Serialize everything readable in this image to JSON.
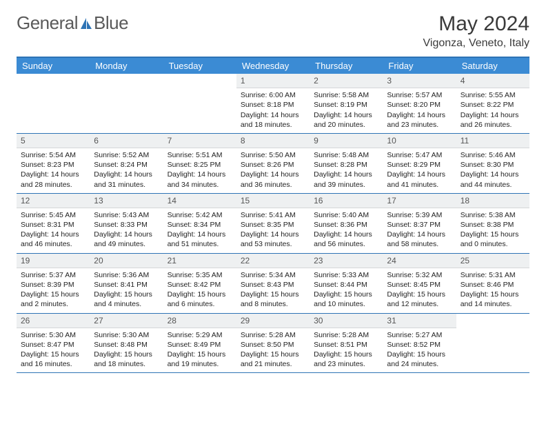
{
  "logo": {
    "text1": "General",
    "text2": "Blue"
  },
  "title": "May 2024",
  "location": "Vigonza, Veneto, Italy",
  "header_bg": "#3b8bd4",
  "rule_color": "#2d73b5",
  "weekdays": [
    "Sunday",
    "Monday",
    "Tuesday",
    "Wednesday",
    "Thursday",
    "Friday",
    "Saturday"
  ],
  "weeks": [
    [
      {
        "n": "",
        "sr": "",
        "ss": "",
        "dl": ""
      },
      {
        "n": "",
        "sr": "",
        "ss": "",
        "dl": ""
      },
      {
        "n": "",
        "sr": "",
        "ss": "",
        "dl": ""
      },
      {
        "n": "1",
        "sr": "Sunrise: 6:00 AM",
        "ss": "Sunset: 8:18 PM",
        "dl": "Daylight: 14 hours and 18 minutes."
      },
      {
        "n": "2",
        "sr": "Sunrise: 5:58 AM",
        "ss": "Sunset: 8:19 PM",
        "dl": "Daylight: 14 hours and 20 minutes."
      },
      {
        "n": "3",
        "sr": "Sunrise: 5:57 AM",
        "ss": "Sunset: 8:20 PM",
        "dl": "Daylight: 14 hours and 23 minutes."
      },
      {
        "n": "4",
        "sr": "Sunrise: 5:55 AM",
        "ss": "Sunset: 8:22 PM",
        "dl": "Daylight: 14 hours and 26 minutes."
      }
    ],
    [
      {
        "n": "5",
        "sr": "Sunrise: 5:54 AM",
        "ss": "Sunset: 8:23 PM",
        "dl": "Daylight: 14 hours and 28 minutes."
      },
      {
        "n": "6",
        "sr": "Sunrise: 5:52 AM",
        "ss": "Sunset: 8:24 PM",
        "dl": "Daylight: 14 hours and 31 minutes."
      },
      {
        "n": "7",
        "sr": "Sunrise: 5:51 AM",
        "ss": "Sunset: 8:25 PM",
        "dl": "Daylight: 14 hours and 34 minutes."
      },
      {
        "n": "8",
        "sr": "Sunrise: 5:50 AM",
        "ss": "Sunset: 8:26 PM",
        "dl": "Daylight: 14 hours and 36 minutes."
      },
      {
        "n": "9",
        "sr": "Sunrise: 5:48 AM",
        "ss": "Sunset: 8:28 PM",
        "dl": "Daylight: 14 hours and 39 minutes."
      },
      {
        "n": "10",
        "sr": "Sunrise: 5:47 AM",
        "ss": "Sunset: 8:29 PM",
        "dl": "Daylight: 14 hours and 41 minutes."
      },
      {
        "n": "11",
        "sr": "Sunrise: 5:46 AM",
        "ss": "Sunset: 8:30 PM",
        "dl": "Daylight: 14 hours and 44 minutes."
      }
    ],
    [
      {
        "n": "12",
        "sr": "Sunrise: 5:45 AM",
        "ss": "Sunset: 8:31 PM",
        "dl": "Daylight: 14 hours and 46 minutes."
      },
      {
        "n": "13",
        "sr": "Sunrise: 5:43 AM",
        "ss": "Sunset: 8:33 PM",
        "dl": "Daylight: 14 hours and 49 minutes."
      },
      {
        "n": "14",
        "sr": "Sunrise: 5:42 AM",
        "ss": "Sunset: 8:34 PM",
        "dl": "Daylight: 14 hours and 51 minutes."
      },
      {
        "n": "15",
        "sr": "Sunrise: 5:41 AM",
        "ss": "Sunset: 8:35 PM",
        "dl": "Daylight: 14 hours and 53 minutes."
      },
      {
        "n": "16",
        "sr": "Sunrise: 5:40 AM",
        "ss": "Sunset: 8:36 PM",
        "dl": "Daylight: 14 hours and 56 minutes."
      },
      {
        "n": "17",
        "sr": "Sunrise: 5:39 AM",
        "ss": "Sunset: 8:37 PM",
        "dl": "Daylight: 14 hours and 58 minutes."
      },
      {
        "n": "18",
        "sr": "Sunrise: 5:38 AM",
        "ss": "Sunset: 8:38 PM",
        "dl": "Daylight: 15 hours and 0 minutes."
      }
    ],
    [
      {
        "n": "19",
        "sr": "Sunrise: 5:37 AM",
        "ss": "Sunset: 8:39 PM",
        "dl": "Daylight: 15 hours and 2 minutes."
      },
      {
        "n": "20",
        "sr": "Sunrise: 5:36 AM",
        "ss": "Sunset: 8:41 PM",
        "dl": "Daylight: 15 hours and 4 minutes."
      },
      {
        "n": "21",
        "sr": "Sunrise: 5:35 AM",
        "ss": "Sunset: 8:42 PM",
        "dl": "Daylight: 15 hours and 6 minutes."
      },
      {
        "n": "22",
        "sr": "Sunrise: 5:34 AM",
        "ss": "Sunset: 8:43 PM",
        "dl": "Daylight: 15 hours and 8 minutes."
      },
      {
        "n": "23",
        "sr": "Sunrise: 5:33 AM",
        "ss": "Sunset: 8:44 PM",
        "dl": "Daylight: 15 hours and 10 minutes."
      },
      {
        "n": "24",
        "sr": "Sunrise: 5:32 AM",
        "ss": "Sunset: 8:45 PM",
        "dl": "Daylight: 15 hours and 12 minutes."
      },
      {
        "n": "25",
        "sr": "Sunrise: 5:31 AM",
        "ss": "Sunset: 8:46 PM",
        "dl": "Daylight: 15 hours and 14 minutes."
      }
    ],
    [
      {
        "n": "26",
        "sr": "Sunrise: 5:30 AM",
        "ss": "Sunset: 8:47 PM",
        "dl": "Daylight: 15 hours and 16 minutes."
      },
      {
        "n": "27",
        "sr": "Sunrise: 5:30 AM",
        "ss": "Sunset: 8:48 PM",
        "dl": "Daylight: 15 hours and 18 minutes."
      },
      {
        "n": "28",
        "sr": "Sunrise: 5:29 AM",
        "ss": "Sunset: 8:49 PM",
        "dl": "Daylight: 15 hours and 19 minutes."
      },
      {
        "n": "29",
        "sr": "Sunrise: 5:28 AM",
        "ss": "Sunset: 8:50 PM",
        "dl": "Daylight: 15 hours and 21 minutes."
      },
      {
        "n": "30",
        "sr": "Sunrise: 5:28 AM",
        "ss": "Sunset: 8:51 PM",
        "dl": "Daylight: 15 hours and 23 minutes."
      },
      {
        "n": "31",
        "sr": "Sunrise: 5:27 AM",
        "ss": "Sunset: 8:52 PM",
        "dl": "Daylight: 15 hours and 24 minutes."
      },
      {
        "n": "",
        "sr": "",
        "ss": "",
        "dl": ""
      }
    ]
  ]
}
